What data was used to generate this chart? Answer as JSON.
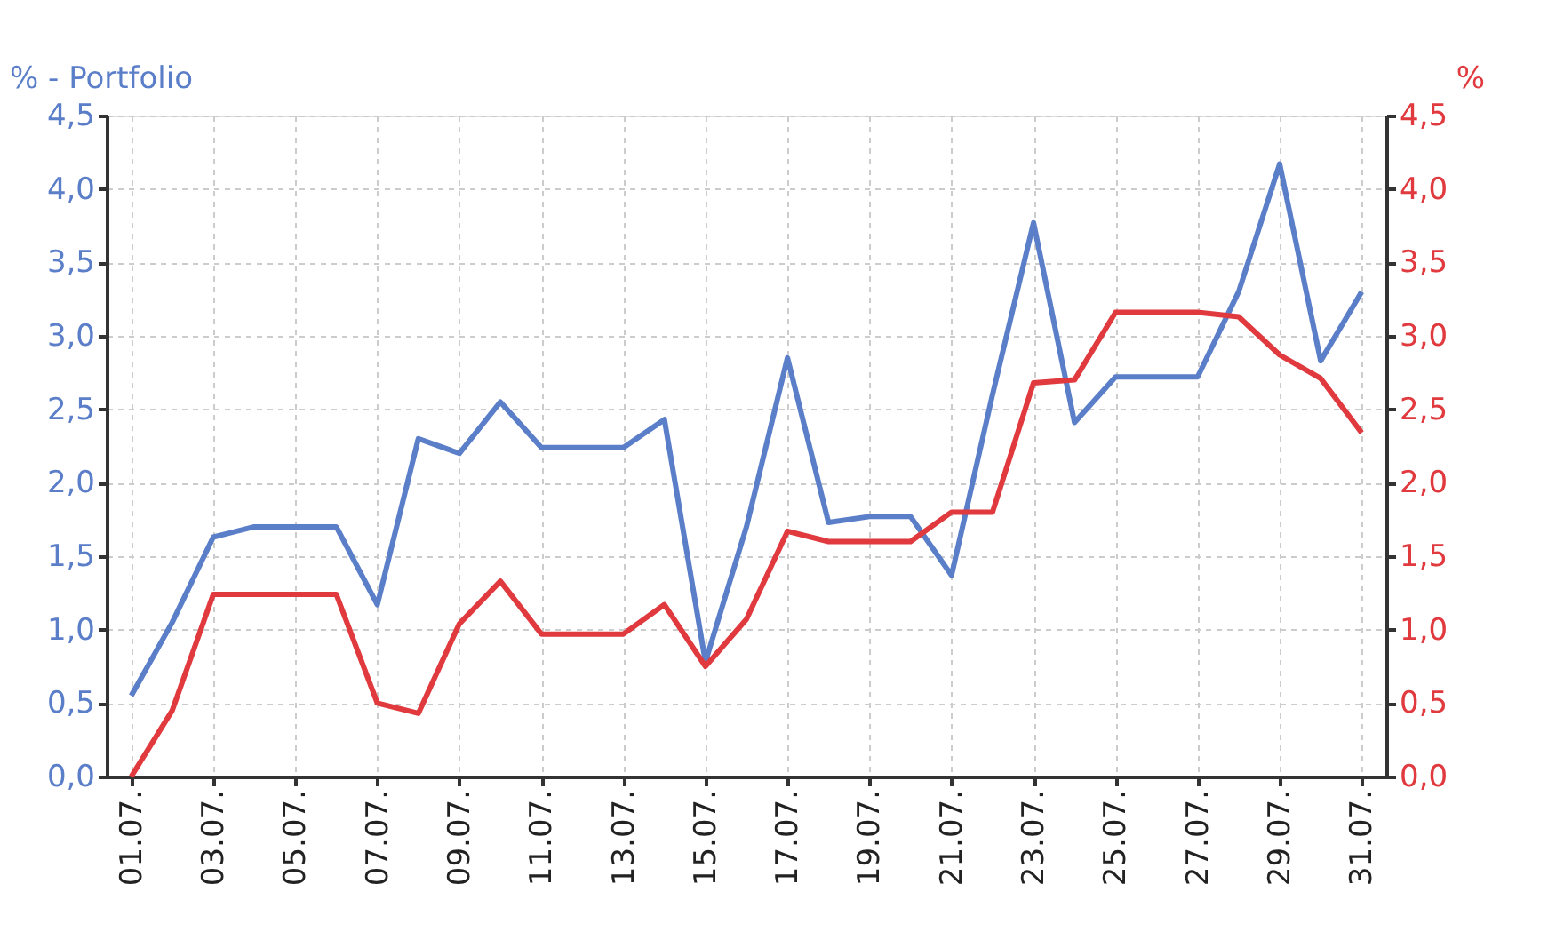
{
  "chart_data": {
    "type": "line",
    "ylabel": "% - Portfolio",
    "y2label": "%",
    "categories": [
      "01.07.",
      null,
      "03.07.",
      null,
      "05.07.",
      null,
      "07.07.",
      null,
      "09.07.",
      null,
      "11.07.",
      null,
      "13.07.",
      null,
      "15.07.",
      null,
      "17.07.",
      null,
      "19.07.",
      null,
      "21.07.",
      null,
      "23.07.",
      null,
      "25.07.",
      null,
      "27.07.",
      null,
      "29.07.",
      null,
      "31.07."
    ],
    "series": [
      {
        "color": "#5b7ec9",
        "values": [
          0.55,
          1.05,
          1.63,
          1.7,
          1.7,
          1.7,
          1.17,
          2.3,
          2.2,
          2.55,
          2.24,
          2.24,
          2.24,
          2.43,
          0.78,
          1.7,
          2.85,
          1.73,
          1.77,
          1.77,
          1.37,
          2.6,
          3.77,
          2.41,
          2.72,
          2.72,
          2.72,
          3.3,
          4.17,
          2.83,
          3.3
        ]
      },
      {
        "color": "#e0393e",
        "axis": "y2",
        "values": [
          0.0,
          0.45,
          1.24,
          1.24,
          1.24,
          1.24,
          0.5,
          0.43,
          1.04,
          1.33,
          0.97,
          0.97,
          0.97,
          1.17,
          0.75,
          1.07,
          1.67,
          1.6,
          1.6,
          1.6,
          1.8,
          1.8,
          2.68,
          2.7,
          3.16,
          3.16,
          3.16,
          3.13,
          2.87,
          2.71,
          2.34
        ]
      }
    ],
    "ylim": [
      0,
      4.5
    ],
    "yticks": [
      {
        "value": 0,
        "label": "0,0"
      },
      {
        "value": 0.5,
        "label": "0,5"
      },
      {
        "value": 1,
        "label": "1,0"
      },
      {
        "value": 1.5,
        "label": "1,5"
      },
      {
        "value": 2,
        "label": "2,0"
      },
      {
        "value": 2.5,
        "label": "2,5"
      },
      {
        "value": 3,
        "label": "3,0"
      },
      {
        "value": 3.5,
        "label": "3,5"
      },
      {
        "value": 4,
        "label": "4,0"
      },
      {
        "value": 4.5,
        "label": "4,5"
      }
    ],
    "y2lim": [
      0,
      4.5
    ],
    "y2ticks": [
      {
        "value": 0,
        "label": "0,0"
      },
      {
        "value": 0.5,
        "label": "0,5"
      },
      {
        "value": 1,
        "label": "1,0"
      },
      {
        "value": 1.5,
        "label": "1,5"
      },
      {
        "value": 2,
        "label": "2,0"
      },
      {
        "value": 2.5,
        "label": "2,5"
      },
      {
        "value": 3,
        "label": "3,0"
      },
      {
        "value": 3.5,
        "label": "3,5"
      },
      {
        "value": 4,
        "label": "4,0"
      },
      {
        "value": 4.5,
        "label": "4,5"
      }
    ],
    "grid": true,
    "marker": "none",
    "line_style": "solid"
  }
}
